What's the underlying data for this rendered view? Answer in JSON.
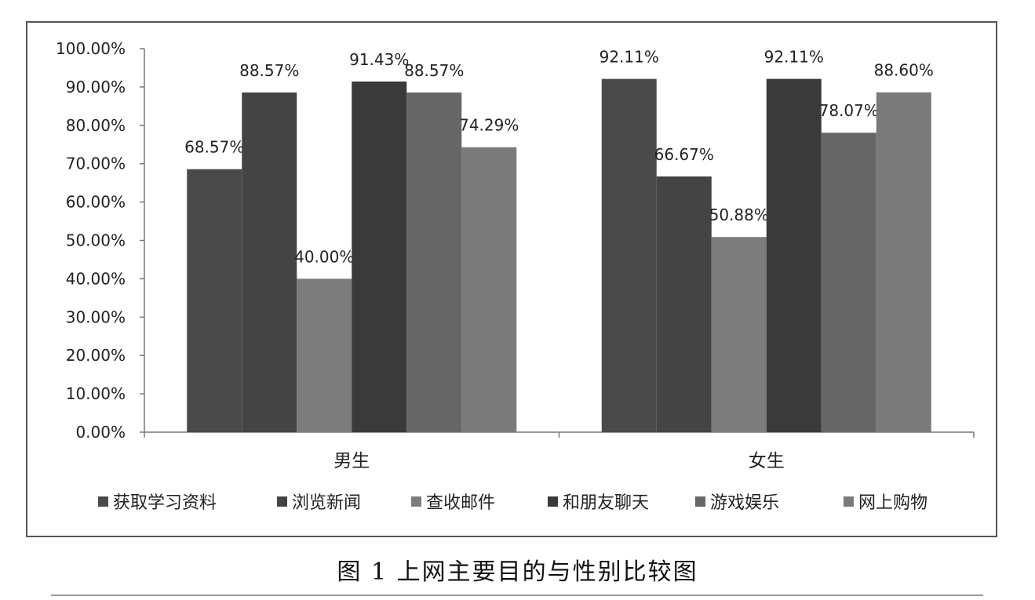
{
  "caption": "图 1  上网主要目的与性别比较图",
  "chart_data": {
    "type": "bar",
    "categories": [
      "男生",
      "女生"
    ],
    "series": [
      {
        "name": "获取学习资料",
        "color": "#4a4a4a",
        "values": [
          68.57,
          92.11
        ],
        "labels": [
          "68.57%",
          "92.11%"
        ]
      },
      {
        "name": "浏览新闻",
        "color": "#444444",
        "values": [
          88.57,
          66.67
        ],
        "labels": [
          "88.57%",
          "66.67%"
        ]
      },
      {
        "name": "查收邮件",
        "color": "#7d7d7d",
        "values": [
          40.0,
          50.88
        ],
        "labels": [
          "40.00%",
          "50.88%"
        ]
      },
      {
        "name": "和朋友聊天",
        "color": "#3a3a3a",
        "values": [
          91.43,
          92.11
        ],
        "labels": [
          "91.43%",
          "92.11%"
        ]
      },
      {
        "name": "游戏娱乐",
        "color": "#666666",
        "values": [
          88.57,
          78.07
        ],
        "labels": [
          "88.57%",
          "78.07%"
        ]
      },
      {
        "name": "网上购物",
        "color": "#7a7a7a",
        "values": [
          74.29,
          88.6
        ],
        "labels": [
          "74.29%",
          "88.60%"
        ]
      }
    ],
    "ylim": [
      0,
      100
    ],
    "yticks": [
      0,
      10,
      20,
      30,
      40,
      50,
      60,
      70,
      80,
      90,
      100
    ],
    "ytick_labels": [
      "0.00%",
      "10.00%",
      "20.00%",
      "30.00%",
      "40.00%",
      "50.00%",
      "60.00%",
      "70.00%",
      "80.00%",
      "90.00%",
      "100.00%"
    ],
    "grid": false,
    "legend": "bottom"
  }
}
